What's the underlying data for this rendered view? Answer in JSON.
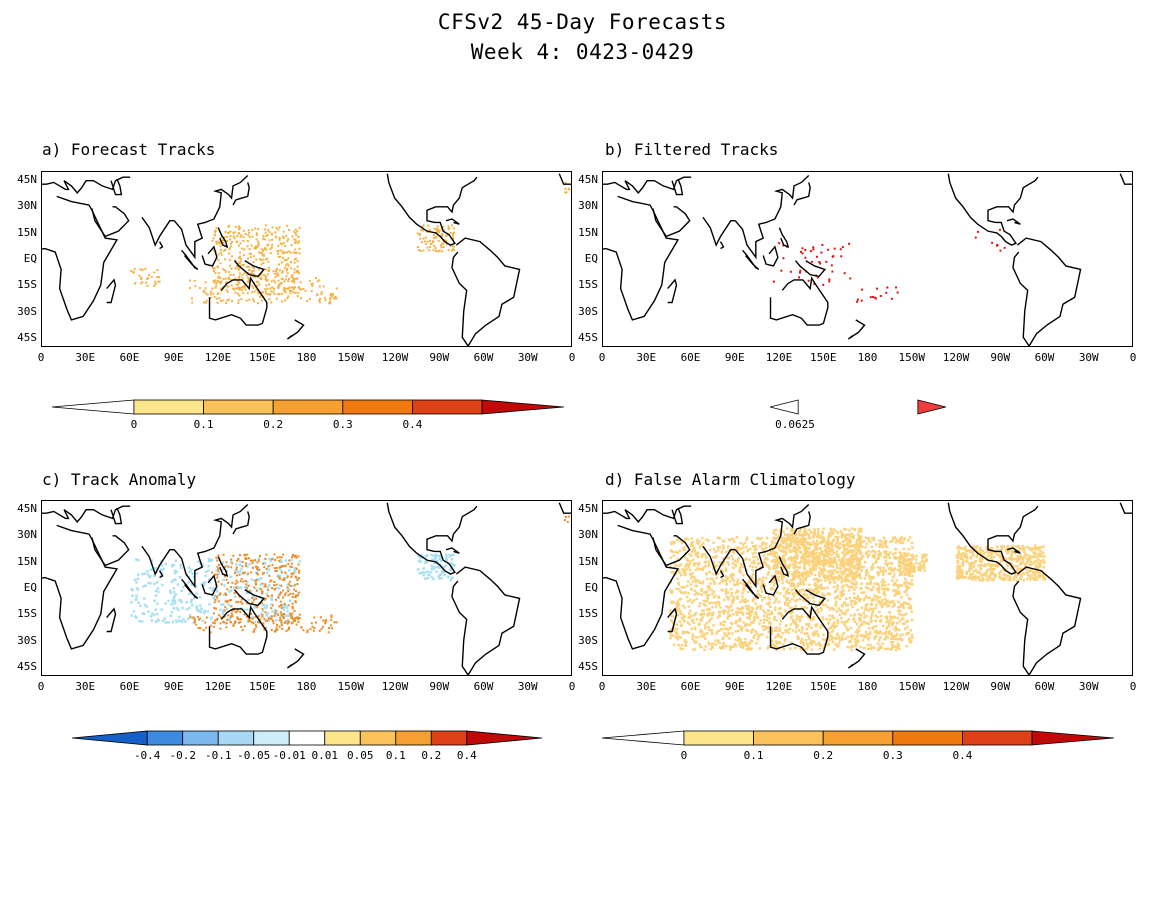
{
  "title": {
    "line1": "CFSv2 45-Day Forecasts",
    "line2": "Week 4: 0423-0429"
  },
  "lat_labels": [
    "45N",
    "30N",
    "15N",
    "EQ",
    "15S",
    "30S",
    "45S"
  ],
  "lon_labels": [
    "0",
    "30E",
    "60E",
    "90E",
    "120E",
    "150E",
    "180",
    "150W",
    "120W",
    "90W",
    "60W",
    "30W",
    "0"
  ],
  "panels": [
    {
      "label": "a) Forecast Tracks",
      "colorbar": {
        "labels": [
          "0",
          "0.1",
          "0.2",
          "0.3",
          "0.4"
        ],
        "colors": [
          "#ffffff",
          "#fde58c",
          "#f9c25a",
          "#f5a030",
          "#f07a10",
          "#e04018",
          "#c00a0a"
        ]
      }
    },
    {
      "label": "b) Filtered Tracks",
      "colorbar": {
        "labels": [
          "0.0625"
        ],
        "colors": [
          "#ffffff",
          "#f03c3c"
        ]
      }
    },
    {
      "label": "c) Track Anomaly",
      "colorbar": {
        "labels": [
          "-0.4",
          "-0.2",
          "-0.1",
          "-0.05",
          "-0.01",
          "0.01",
          "0.05",
          "0.1",
          "0.2",
          "0.4"
        ],
        "colors": [
          "#1560c8",
          "#3d8ae0",
          "#7ab8ee",
          "#a8d8f4",
          "#ccecf8",
          "#ffffff",
          "#fde58c",
          "#f9c25a",
          "#f5a030",
          "#e04018",
          "#c00a0a"
        ]
      }
    },
    {
      "label": "d) False Alarm Climatology",
      "colorbar": {
        "labels": [
          "0",
          "0.1",
          "0.2",
          "0.3",
          "0.4"
        ],
        "colors": [
          "#ffffff",
          "#fde58c",
          "#f9c25a",
          "#f5a030",
          "#f07a10",
          "#e04018",
          "#c00a0a"
        ]
      }
    }
  ],
  "colors": {
    "coast": "#000000",
    "track_orange": "#f5b040",
    "track_red": "#e01010",
    "anomaly_blue": "#a8dff2",
    "clim_orange": "#fbd27c"
  }
}
